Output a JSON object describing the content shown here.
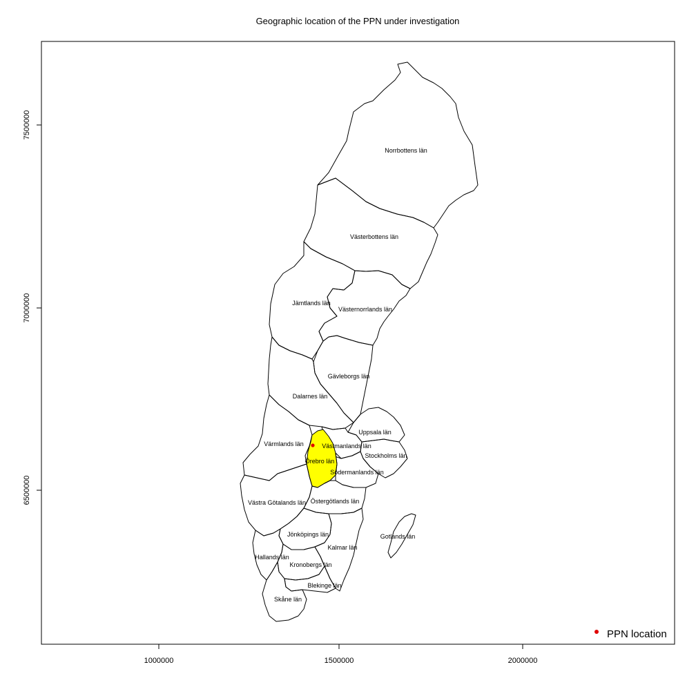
{
  "title": "Geographic location of the PPN under investigation",
  "axes": {
    "x_ticks": [
      {
        "value": 1000000,
        "label": "1000000"
      },
      {
        "value": 1500000,
        "label": "1500000"
      },
      {
        "value": 2000000,
        "label": "2000000"
      }
    ],
    "y_ticks": [
      {
        "value": 6500000,
        "label": "6500000"
      },
      {
        "value": 7000000,
        "label": "7000000"
      },
      {
        "value": 7500000,
        "label": "7500000"
      }
    ]
  },
  "legend": {
    "position": "bottom-right",
    "label": "PPN location",
    "marker_color": "#e00000"
  },
  "highlight_color": "#ffff00",
  "highlighted_county": "Örebro län",
  "counties": [
    {
      "name": "Norrbottens län"
    },
    {
      "name": "Västerbottens län"
    },
    {
      "name": "Jämtlands län"
    },
    {
      "name": "Västernorrlands län"
    },
    {
      "name": "Gävleborgs län"
    },
    {
      "name": "Dalarnes län"
    },
    {
      "name": "Uppsala län"
    },
    {
      "name": "Värmlands län"
    },
    {
      "name": "Västmanlands län"
    },
    {
      "name": "Stockholms län"
    },
    {
      "name": "Örebro län"
    },
    {
      "name": "Södermanlands län"
    },
    {
      "name": "Västra Götalands län"
    },
    {
      "name": "Östergötlands län"
    },
    {
      "name": "Jönköpings län"
    },
    {
      "name": "Gotlands län"
    },
    {
      "name": "Kalmar län"
    },
    {
      "name": "Hallands län"
    },
    {
      "name": "Kronobergs län"
    },
    {
      "name": "Blekinge län"
    },
    {
      "name": "Skåne län"
    }
  ],
  "ppn_point": {
    "label": "PPN location"
  }
}
